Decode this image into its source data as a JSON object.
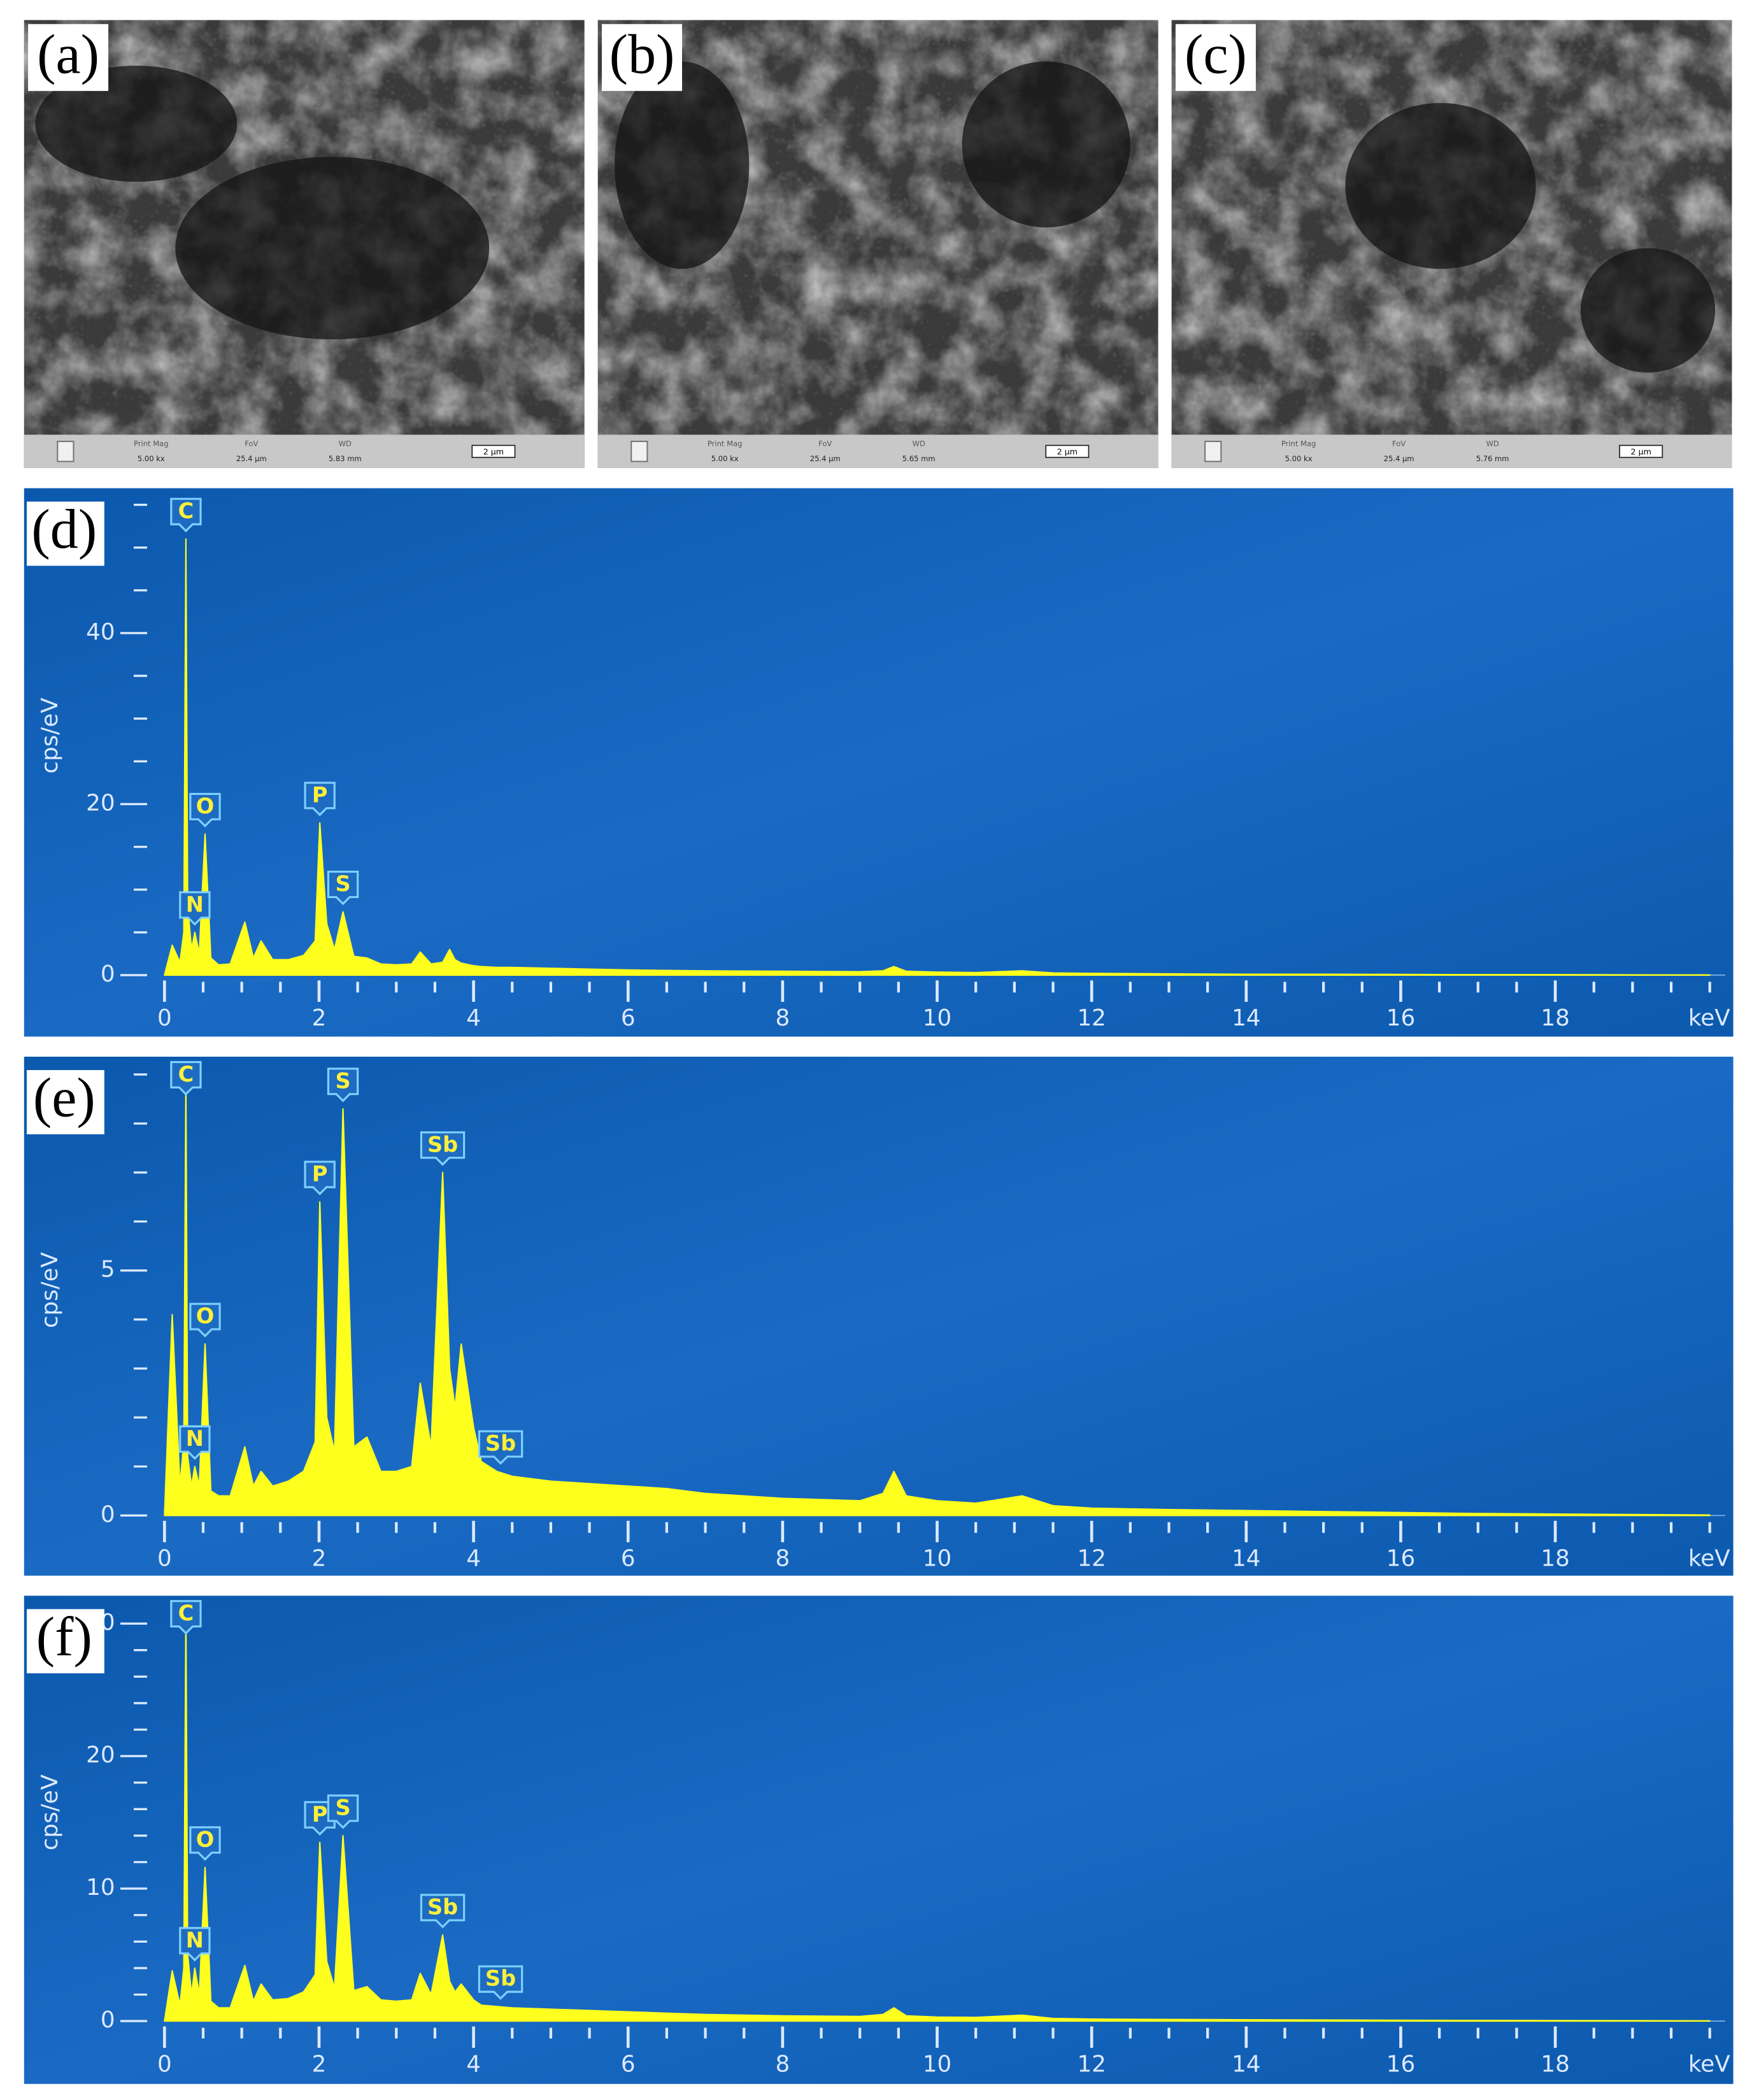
{
  "sem_panels": [
    {
      "label": "(a)",
      "mag_label": "Print Mag",
      "mag": "5.00 kx",
      "fov_label": "FoV",
      "fov": "25.4 µm",
      "wd_label": "WD",
      "wd": "5.83 mm",
      "scale": "2 µm"
    },
    {
      "label": "(b)",
      "mag_label": "Print Mag",
      "mag": "5.00 kx",
      "fov_label": "FoV",
      "fov": "25.4 µm",
      "wd_label": "WD",
      "wd": "5.65 mm",
      "scale": "2 µm"
    },
    {
      "label": "(c)",
      "mag_label": "Print Mag",
      "mag": "5.00 kx",
      "fov_label": "FoV",
      "fov": "25.4 µm",
      "wd_label": "WD",
      "wd": "5.76 mm",
      "scale": "2 µm"
    }
  ],
  "chart_data": [
    {
      "type": "area",
      "panel_label": "(d)",
      "ylabel": "cps/eV",
      "xlabel": "keV",
      "color": "#ffff1e",
      "x": [
        0,
        0.1,
        0.2,
        0.25,
        0.277,
        0.3,
        0.35,
        0.392,
        0.45,
        0.525,
        0.6,
        0.7,
        0.85,
        1.04,
        1.15,
        1.25,
        1.4,
        1.6,
        1.8,
        1.95,
        2.01,
        2.1,
        2.2,
        2.31,
        2.45,
        2.62,
        2.8,
        3.0,
        3.2,
        3.31,
        3.45,
        3.6,
        3.69,
        3.76,
        3.84,
        4.0,
        4.1,
        4.3,
        4.5,
        5,
        5.5,
        6,
        6.5,
        7,
        8,
        9,
        9.3,
        9.44,
        9.6,
        10,
        10.5,
        11.1,
        11.5,
        12,
        13,
        14,
        15,
        16,
        17,
        18,
        19,
        20
      ],
      "values": [
        0,
        3.5,
        1.5,
        5,
        51,
        8,
        3,
        5,
        2.5,
        16.5,
        2,
        1.2,
        1.3,
        6.2,
        2,
        4,
        1.8,
        1.8,
        2.3,
        4,
        17.8,
        6,
        3,
        7.4,
        2.2,
        2,
        1.3,
        1.2,
        1.3,
        2.7,
        1.3,
        1.5,
        3,
        1.8,
        1.4,
        1.1,
        1.0,
        0.9,
        0.9,
        0.8,
        0.7,
        0.6,
        0.55,
        0.5,
        0.45,
        0.4,
        0.5,
        1.0,
        0.45,
        0.35,
        0.3,
        0.5,
        0.25,
        0.2,
        0.15,
        0.1,
        0.1,
        0.08,
        0.05,
        0.05,
        0.03,
        0.02
      ],
      "annotations": [
        {
          "text": "C",
          "x": 0.277
        },
        {
          "text": "N",
          "x": 0.392
        },
        {
          "text": "O",
          "x": 0.525
        },
        {
          "text": "P",
          "x": 2.01
        },
        {
          "text": "S",
          "x": 2.31
        }
      ],
      "xlim": [
        0,
        20.2
      ],
      "xticks": [
        0,
        2,
        4,
        6,
        8,
        10,
        12,
        14,
        16,
        18
      ],
      "xminorticks": [
        0.5,
        1,
        1.5,
        2.5,
        3,
        3.5,
        4.5,
        5,
        5.5,
        6.5,
        7,
        7.5,
        8.5,
        9,
        9.5,
        10.5,
        11,
        11.5,
        12.5,
        13,
        13.5,
        14.5,
        15,
        15.5,
        16.5,
        17,
        17.5,
        18.5,
        19,
        19.5,
        20
      ],
      "ylim": [
        0,
        56
      ],
      "yticks": [
        0,
        20,
        40
      ],
      "yminorticks": [
        5,
        10,
        15,
        25,
        30,
        35,
        45,
        50,
        55
      ]
    },
    {
      "type": "area",
      "panel_label": "(e)",
      "ylabel": "cps/eV",
      "xlabel": "keV",
      "color": "#ffff1e",
      "x": [
        0,
        0.1,
        0.2,
        0.25,
        0.277,
        0.3,
        0.35,
        0.392,
        0.45,
        0.525,
        0.6,
        0.7,
        0.85,
        1.04,
        1.15,
        1.25,
        1.4,
        1.6,
        1.8,
        1.95,
        2.01,
        2.1,
        2.2,
        2.31,
        2.45,
        2.62,
        2.8,
        3.0,
        3.2,
        3.31,
        3.45,
        3.6,
        3.69,
        3.76,
        3.84,
        4.0,
        4.1,
        4.3,
        4.5,
        5,
        5.5,
        6,
        6.5,
        7,
        8,
        9,
        9.3,
        9.44,
        9.6,
        10,
        10.5,
        11.1,
        11.5,
        12,
        13,
        14,
        15,
        16,
        17,
        18,
        19,
        20
      ],
      "values": [
        0,
        4.1,
        0.6,
        1.5,
        8.9,
        1.2,
        0.6,
        1.0,
        0.6,
        3.5,
        0.5,
        0.4,
        0.4,
        1.4,
        0.6,
        0.9,
        0.6,
        0.7,
        0.9,
        1.5,
        6.4,
        2.0,
        1.3,
        8.3,
        1.4,
        1.6,
        0.9,
        0.9,
        1.0,
        2.7,
        1.4,
        7.0,
        3.0,
        2.2,
        3.5,
        1.8,
        1.1,
        0.9,
        0.8,
        0.7,
        0.65,
        0.6,
        0.55,
        0.45,
        0.35,
        0.3,
        0.45,
        0.9,
        0.4,
        0.3,
        0.25,
        0.4,
        0.2,
        0.15,
        0.12,
        0.1,
        0.08,
        0.06,
        0.04,
        0.03,
        0.02,
        0.01
      ],
      "annotations": [
        {
          "text": "C",
          "x": 0.277
        },
        {
          "text": "N",
          "x": 0.392
        },
        {
          "text": "O",
          "x": 0.525
        },
        {
          "text": "P",
          "x": 2.01
        },
        {
          "text": "S",
          "x": 2.31
        },
        {
          "text": "Sb",
          "x": 3.6
        },
        {
          "text": "Sb",
          "x": 4.35
        }
      ],
      "xlim": [
        0,
        20.2
      ],
      "xticks": [
        0,
        2,
        4,
        6,
        8,
        10,
        12,
        14,
        16,
        18
      ],
      "xminorticks": [
        0.5,
        1,
        1.5,
        2.5,
        3,
        3.5,
        4.5,
        5,
        5.5,
        6.5,
        7,
        7.5,
        8.5,
        9,
        9.5,
        10.5,
        11,
        11.5,
        12.5,
        13,
        13.5,
        14.5,
        15,
        15.5,
        16.5,
        17,
        17.5,
        18.5,
        19,
        19.5,
        20
      ],
      "ylim": [
        0,
        9.2
      ],
      "yticks": [
        0,
        5
      ],
      "yminorticks": [
        1,
        2,
        3,
        4,
        6,
        7,
        8,
        9
      ]
    },
    {
      "type": "area",
      "panel_label": "(f)",
      "ylabel": "cps/eV",
      "xlabel": "keV",
      "color": "#ffff1e",
      "x": [
        0,
        0.1,
        0.2,
        0.25,
        0.277,
        0.3,
        0.35,
        0.392,
        0.45,
        0.525,
        0.6,
        0.7,
        0.85,
        1.04,
        1.15,
        1.25,
        1.4,
        1.6,
        1.8,
        1.95,
        2.01,
        2.1,
        2.2,
        2.31,
        2.45,
        2.62,
        2.8,
        3.0,
        3.2,
        3.31,
        3.45,
        3.6,
        3.69,
        3.76,
        3.84,
        4.0,
        4.1,
        4.3,
        4.5,
        5,
        5.5,
        6,
        6.5,
        7,
        8,
        9,
        9.3,
        9.44,
        9.6,
        10,
        10.5,
        11.1,
        11.5,
        12,
        13,
        14,
        15,
        16,
        17,
        18,
        19,
        20
      ],
      "values": [
        0,
        3.8,
        1.2,
        4,
        31,
        5,
        2,
        4,
        2,
        11.6,
        1.5,
        1.0,
        1.0,
        4.2,
        1.5,
        2.8,
        1.6,
        1.7,
        2.2,
        3.5,
        13.5,
        4.5,
        2.5,
        14,
        2.3,
        2.6,
        1.6,
        1.5,
        1.6,
        3.6,
        2,
        6.5,
        3,
        2.2,
        2.8,
        1.6,
        1.2,
        1.1,
        1.0,
        0.9,
        0.8,
        0.7,
        0.6,
        0.5,
        0.4,
        0.35,
        0.5,
        1.0,
        0.4,
        0.3,
        0.28,
        0.45,
        0.2,
        0.15,
        0.12,
        0.1,
        0.08,
        0.06,
        0.05,
        0.04,
        0.03,
        0.02
      ],
      "annotations": [
        {
          "text": "C",
          "x": 0.277
        },
        {
          "text": "N",
          "x": 0.392
        },
        {
          "text": "O",
          "x": 0.525
        },
        {
          "text": "P",
          "x": 2.01
        },
        {
          "text": "S",
          "x": 2.31
        },
        {
          "text": "Sb",
          "x": 3.6
        },
        {
          "text": "Sb",
          "x": 4.35
        }
      ],
      "xlim": [
        0,
        20.2
      ],
      "xticks": [
        0,
        2,
        4,
        6,
        8,
        10,
        12,
        14,
        16,
        18
      ],
      "xminorticks": [
        0.5,
        1,
        1.5,
        2.5,
        3,
        3.5,
        4.5,
        5,
        5.5,
        6.5,
        7,
        7.5,
        8.5,
        9,
        9.5,
        10.5,
        11,
        11.5,
        12.5,
        13,
        13.5,
        14.5,
        15,
        15.5,
        16.5,
        17,
        17.5,
        18.5,
        19,
        19.5,
        20
      ],
      "ylim": [
        0,
        31.5
      ],
      "yticks": [
        0,
        10,
        20,
        30
      ],
      "yminorticks": [
        2,
        4,
        6,
        8,
        12,
        14,
        16,
        18,
        22,
        24,
        26,
        28
      ]
    }
  ]
}
